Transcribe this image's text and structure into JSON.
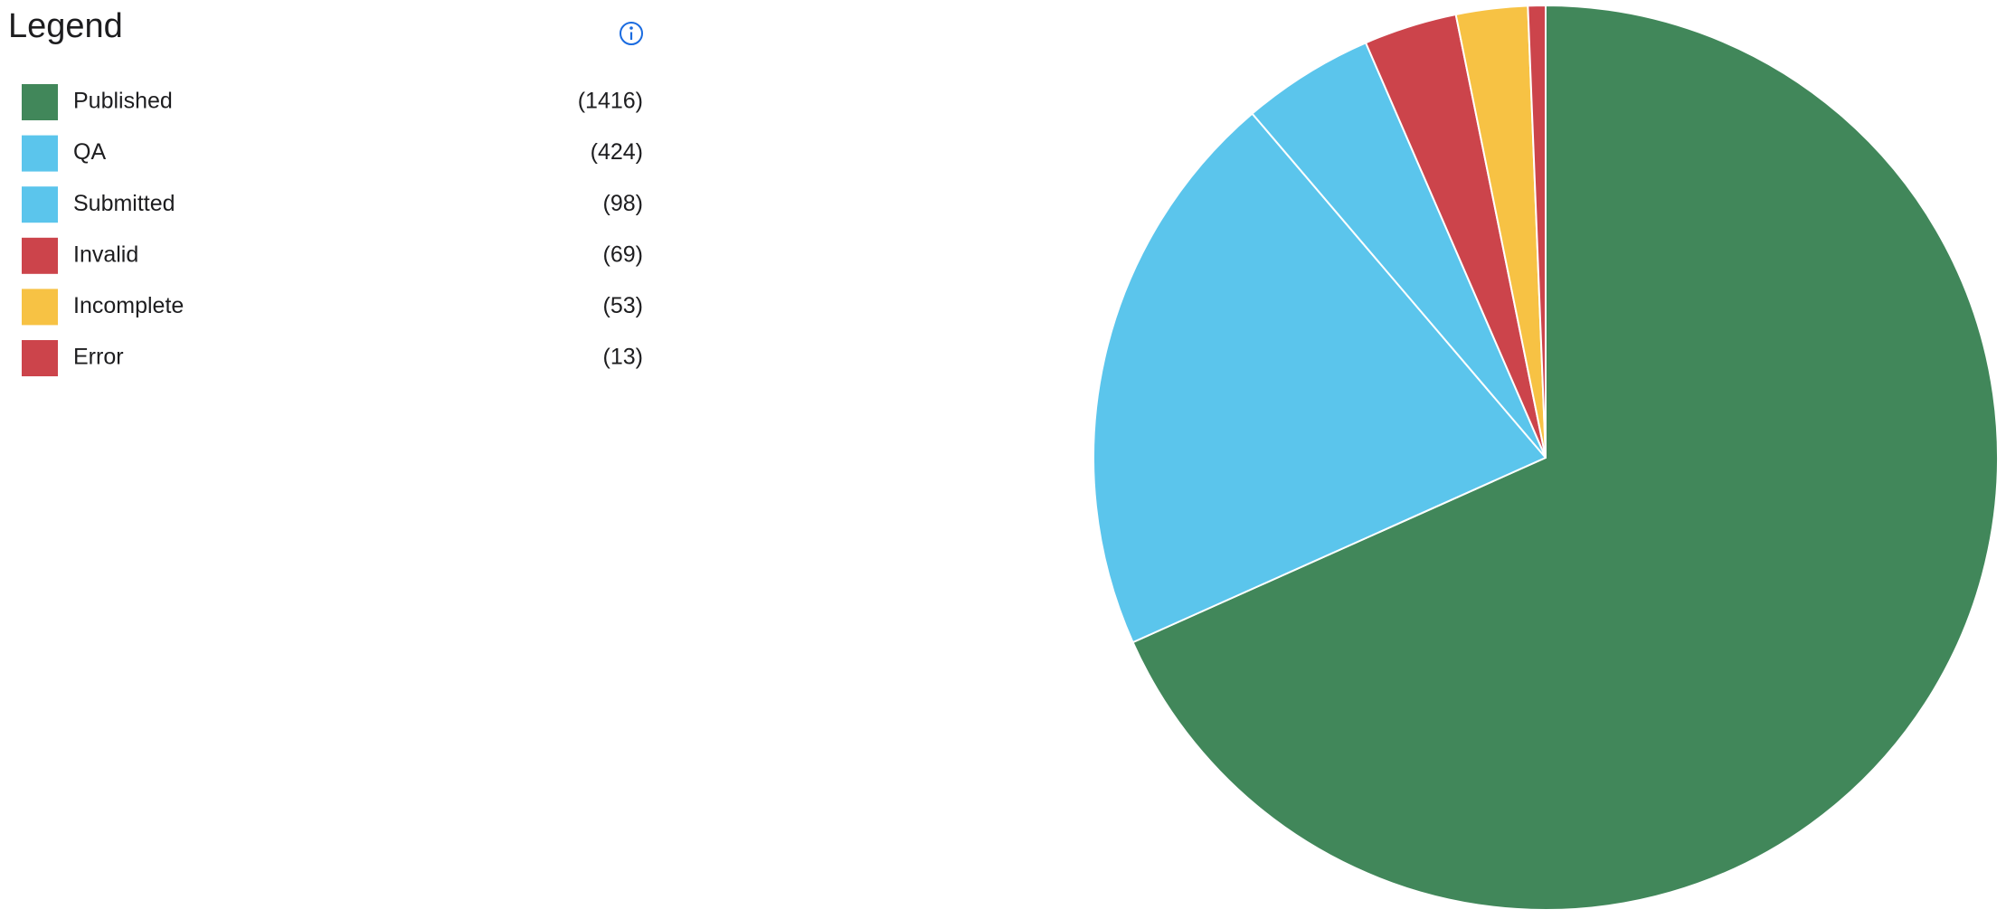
{
  "chart_data": {
    "type": "pie",
    "legend_title": "Legend",
    "categories": [
      "Published",
      "QA",
      "Submitted",
      "Invalid",
      "Incomplete",
      "Error"
    ],
    "values": [
      1416,
      424,
      98,
      69,
      53,
      13
    ],
    "value_labels": [
      "(1416)",
      "(424)",
      "(98)",
      "(69)",
      "(53)",
      "(13)"
    ],
    "colors": [
      "#41875a",
      "#5bc5ec",
      "#5bc5ec",
      "#cc444b",
      "#f7c244",
      "#cc444b"
    ]
  }
}
